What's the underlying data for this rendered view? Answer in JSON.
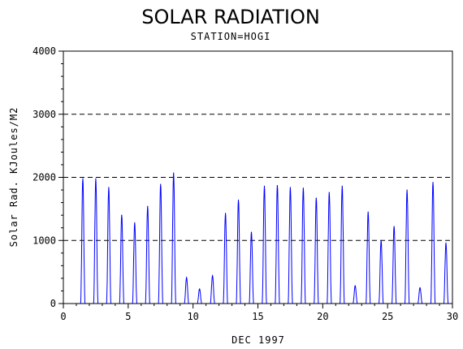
{
  "chart_data": {
    "type": "line",
    "title": "SOLAR RADIATION",
    "subtitle": "STATION=HOGI",
    "xlabel": "DEC 1997",
    "ylabel": "Solar Rad. KJoules/M2",
    "xlim": [
      0,
      30
    ],
    "ylim": [
      0,
      4000
    ],
    "xticks": [
      0,
      5,
      10,
      15,
      20,
      25,
      30
    ],
    "yticks": [
      0,
      1000,
      2000,
      3000,
      4000
    ],
    "grid": "horizontal dashed",
    "series_color": "#0000ff",
    "daily_peaks": [
      {
        "day": 1,
        "peak": 1980
      },
      {
        "day": 2,
        "peak": 1980
      },
      {
        "day": 3,
        "peak": 1840
      },
      {
        "day": 4,
        "peak": 1400
      },
      {
        "day": 5,
        "peak": 1280
      },
      {
        "day": 6,
        "peak": 1540
      },
      {
        "day": 7,
        "peak": 1890
      },
      {
        "day": 8,
        "peak": 2070
      },
      {
        "day": 9,
        "peak": 410
      },
      {
        "day": 10,
        "peak": 230
      },
      {
        "day": 11,
        "peak": 440
      },
      {
        "day": 12,
        "peak": 1430
      },
      {
        "day": 13,
        "peak": 1640
      },
      {
        "day": 14,
        "peak": 1130
      },
      {
        "day": 15,
        "peak": 1860
      },
      {
        "day": 16,
        "peak": 1870
      },
      {
        "day": 17,
        "peak": 1840
      },
      {
        "day": 18,
        "peak": 1830
      },
      {
        "day": 19,
        "peak": 1670
      },
      {
        "day": 20,
        "peak": 1760
      },
      {
        "day": 21,
        "peak": 1860
      },
      {
        "day": 22,
        "peak": 280
      },
      {
        "day": 23,
        "peak": 1450
      },
      {
        "day": 24,
        "peak": 1000
      },
      {
        "day": 25,
        "peak": 1220
      },
      {
        "day": 26,
        "peak": 1800
      },
      {
        "day": 27,
        "peak": 250
      },
      {
        "day": 28,
        "peak": 1920
      },
      {
        "day": 29,
        "peak": 960
      }
    ]
  }
}
